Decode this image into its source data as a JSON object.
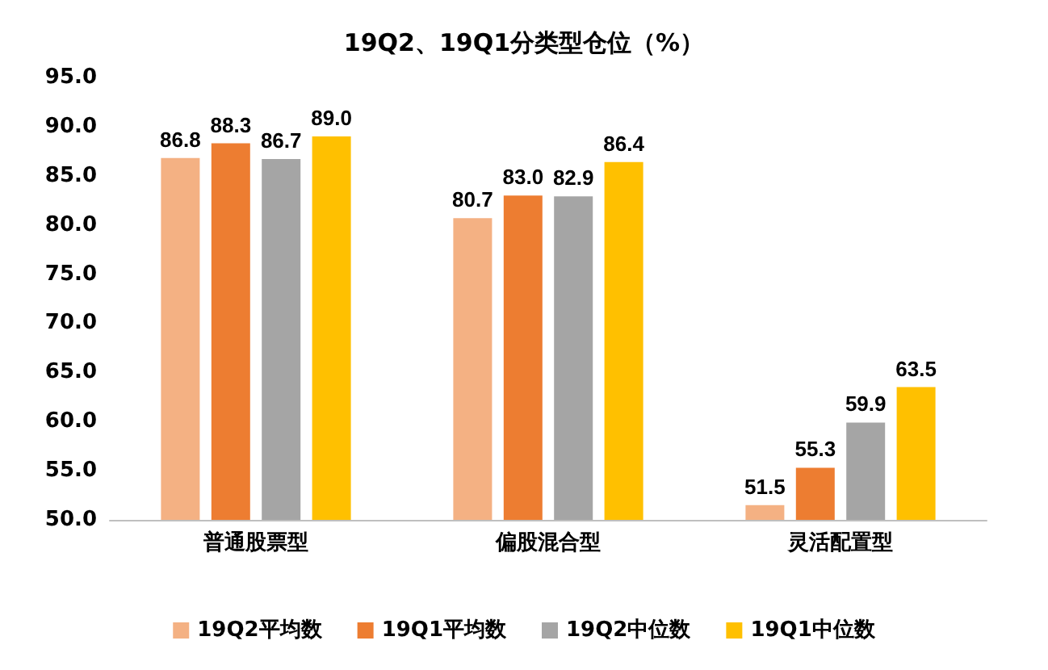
{
  "chart_data": {
    "type": "bar",
    "title": "19Q2、19Q1分类型仓位（%）",
    "categories": [
      "普通股票型",
      "偏股混合型",
      "灵活配置型"
    ],
    "series": [
      {
        "name": "19Q2平均数",
        "color": "#f4b183",
        "values": [
          86.8,
          80.7,
          51.5
        ],
        "value_labels": [
          "86.8",
          "80.7",
          "51.5"
        ]
      },
      {
        "name": "19Q1平均数",
        "color": "#ed7d31",
        "values": [
          88.3,
          83.0,
          55.3
        ],
        "value_labels": [
          "88.3",
          "83.0",
          "55.3"
        ]
      },
      {
        "name": "19Q2中位数",
        "color": "#a5a5a5",
        "values": [
          86.7,
          82.9,
          59.9
        ],
        "value_labels": [
          "86.7",
          "82.9",
          "59.9"
        ]
      },
      {
        "name": "19Q1中位数",
        "color": "#ffc000",
        "values": [
          89.0,
          86.4,
          63.5
        ],
        "value_labels": [
          "89.0",
          "86.4",
          "63.5"
        ]
      }
    ],
    "ylim": [
      50,
      95
    ],
    "yticks": [
      {
        "value": 50,
        "label": "50.0"
      },
      {
        "value": 55,
        "label": "55.0"
      },
      {
        "value": 60,
        "label": "60.0"
      },
      {
        "value": 65,
        "label": "65.0"
      },
      {
        "value": 70,
        "label": "70.0"
      },
      {
        "value": 75,
        "label": "75.0"
      },
      {
        "value": 80,
        "label": "80.0"
      },
      {
        "value": 85,
        "label": "85.0"
      },
      {
        "value": 90,
        "label": "90.0"
      },
      {
        "value": 95,
        "label": "95.0"
      }
    ],
    "grid": false,
    "legend": "bottom"
  }
}
